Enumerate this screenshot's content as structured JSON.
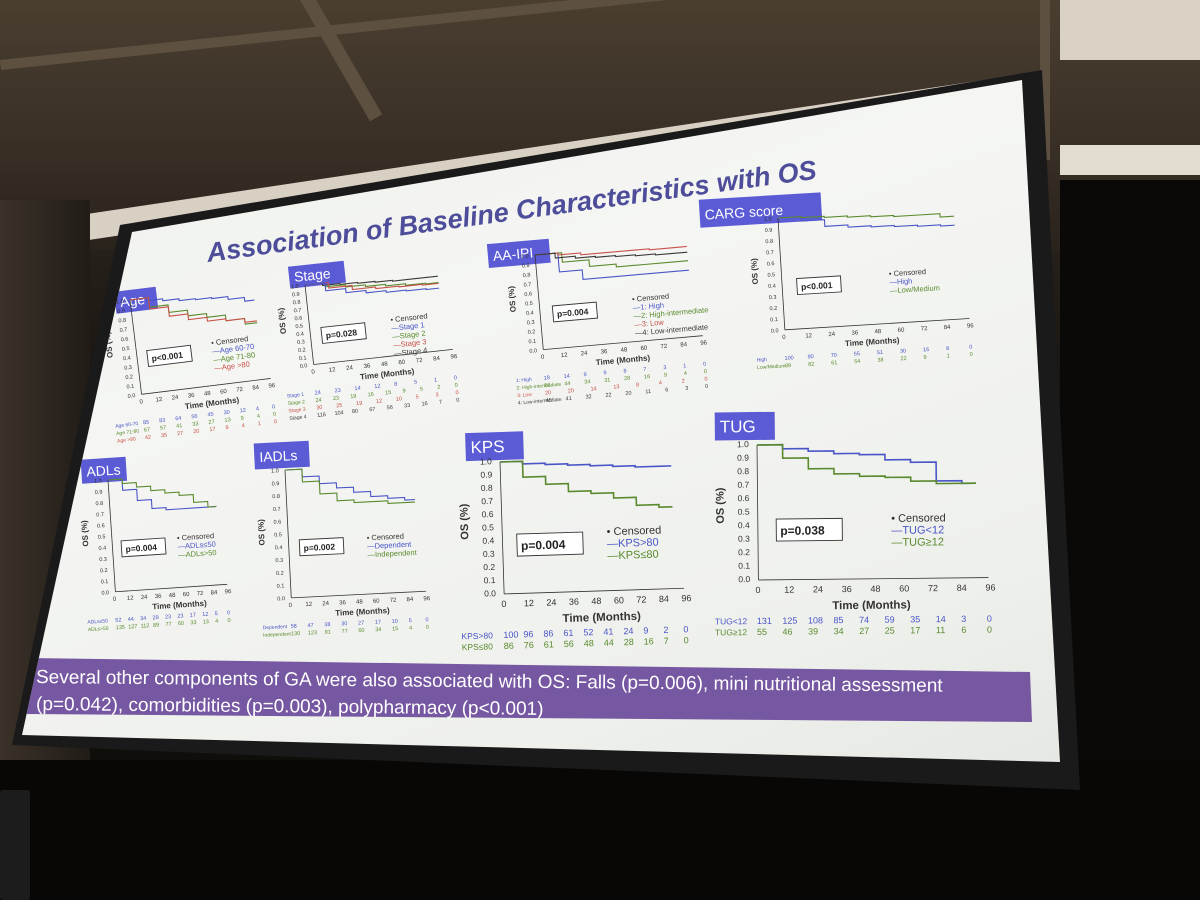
{
  "slide": {
    "title": "Association of Baseline Characteristics with OS",
    "footer_note": "Several other components of GA were also associated with OS: Falls (p=0.006), mini nutritional assessment (p=0.042), comorbidities (p=0.003), polypharmacy (p<0.001)",
    "x_axis_label": "Time (Months)",
    "y_axis_label": "OS (%)",
    "censored_label": "Censored"
  },
  "colors": {
    "label_box": "#5b5bd6",
    "footer_bg": "#6b4a9a",
    "title_text": "#4d4d9a",
    "blue": "#4a55c8",
    "green": "#5a8a2e",
    "red": "#c8504a",
    "dark": "#3a3a3a"
  },
  "panels": [
    {
      "label": "Age",
      "p": "p<0.001",
      "legend": [
        "Age 60-70",
        "Age 71-80",
        "Age >80"
      ],
      "risk": [
        [
          "Age 60-70",
          "85",
          "83",
          "64",
          "56",
          "45",
          "30",
          "12",
          "4",
          "0"
        ],
        [
          "Age 71-80",
          "67",
          "57",
          "41",
          "33",
          "27",
          "13",
          "9",
          "4",
          "0"
        ],
        [
          "Age >80",
          "42",
          "35",
          "27",
          "20",
          "17",
          "9",
          "4",
          "1",
          "0"
        ]
      ]
    },
    {
      "label": "Stage",
      "p": "p=0.028",
      "legend": [
        "Stage 1",
        "Stage 2",
        "Stage 3",
        "Stage 4"
      ],
      "risk": [
        [
          "Stage 1",
          "24",
          "23",
          "14",
          "12",
          "8",
          "5",
          "1",
          "0"
        ],
        [
          "Stage 2",
          "24",
          "23",
          "19",
          "16",
          "15",
          "9",
          "5",
          "2",
          "0"
        ],
        [
          "Stage 3",
          "30",
          "25",
          "19",
          "12",
          "10",
          "5",
          "3",
          "0"
        ],
        [
          "Stage 4",
          "116",
          "104",
          "80",
          "67",
          "56",
          "33",
          "16",
          "7",
          "0"
        ]
      ]
    },
    {
      "label": "AA-IPI",
      "p": "p=0.004",
      "legend": [
        "1: High",
        "2: High-intermediate",
        "3: Low",
        "4: Low-intermediate"
      ],
      "risk": [
        [
          "1: High",
          "18",
          "14",
          "9",
          "9",
          "8",
          "7",
          "3",
          "1",
          "0"
        ],
        [
          "2: High-intermediate",
          "50",
          "44",
          "34",
          "31",
          "28",
          "16",
          "9",
          "4",
          "0"
        ],
        [
          "3: Low",
          "20",
          "20",
          "14",
          "13",
          "8",
          "4",
          "2",
          "0"
        ],
        [
          "4: Low-intermediate",
          "45",
          "41",
          "32",
          "22",
          "20",
          "11",
          "6",
          "3",
          "0"
        ]
      ]
    },
    {
      "label": "CARG score",
      "p": "p<0.001",
      "legend": [
        "High",
        "Low/Medium"
      ],
      "risk": [
        [
          "High",
          "100",
          "90",
          "70",
          "55",
          "51",
          "30",
          "16",
          "8",
          "0"
        ],
        [
          "Low/Medium",
          "89",
          "82",
          "61",
          "54",
          "38",
          "22",
          "9",
          "1",
          "0"
        ]
      ]
    },
    {
      "label": "ADLs",
      "p": "p=0.004",
      "legend": [
        "ADLs≤50",
        "ADLs>50"
      ],
      "risk": [
        [
          "ADLs≤50",
          "52",
          "44",
          "34",
          "29",
          "23",
          "23",
          "17",
          "12",
          "5",
          "0"
        ],
        [
          "ADLs>50",
          "135",
          "127",
          "112",
          "89",
          "77",
          "60",
          "33",
          "13",
          "4",
          "0"
        ]
      ]
    },
    {
      "label": "IADLs",
      "p": "p=0.002",
      "legend": [
        "Dependent",
        "Independent"
      ],
      "risk": [
        [
          "Dependent",
          "58",
          "47",
          "38",
          "30",
          "27",
          "17",
          "10",
          "5",
          "0"
        ],
        [
          "Independent",
          "130",
          "123",
          "91",
          "77",
          "60",
          "34",
          "15",
          "4",
          "0"
        ]
      ]
    },
    {
      "label": "KPS",
      "p": "p=0.004",
      "legend": [
        "KPS>80",
        "KPS≤80"
      ],
      "risk": [
        [
          "KPS>80",
          "100",
          "96",
          "86",
          "61",
          "52",
          "41",
          "24",
          "9",
          "2",
          "0"
        ],
        [
          "KPS≤80",
          "86",
          "76",
          "61",
          "56",
          "48",
          "44",
          "28",
          "16",
          "7",
          "0"
        ]
      ]
    },
    {
      "label": "TUG",
      "p": "p=0.038",
      "legend": [
        "TUG<12",
        "TUG≥12"
      ],
      "risk": [
        [
          "TUG<12",
          "131",
          "125",
          "108",
          "85",
          "74",
          "59",
          "35",
          "14",
          "3",
          "0"
        ],
        [
          "TUG≥12",
          "55",
          "46",
          "39",
          "34",
          "27",
          "25",
          "17",
          "11",
          "6",
          "0"
        ]
      ]
    }
  ],
  "x_ticks_9": [
    "0",
    "12",
    "24",
    "36",
    "48",
    "60",
    "72",
    "84",
    "96"
  ],
  "x_ticks_AA": [
    "0",
    "12",
    "24",
    "36",
    "48",
    "60",
    "72",
    "84",
    "96"
  ],
  "y_ticks_small": [
    "0.0",
    "0.1",
    "0.2",
    "0.3",
    "0.4",
    "0.5",
    "0.6",
    "0.7",
    "0.8",
    "0.9",
    "1.0"
  ]
}
